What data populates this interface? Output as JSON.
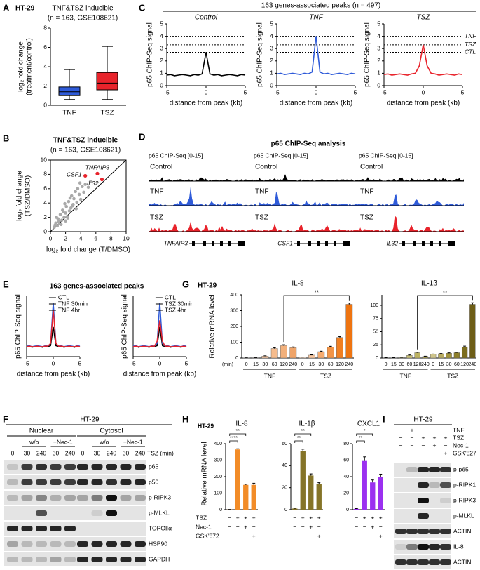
{
  "panel_labels": [
    "A",
    "B",
    "C",
    "D",
    "E",
    "F",
    "G",
    "H",
    "I"
  ],
  "chart_data": [
    {
      "type": "box",
      "cell_line": "HT-29",
      "title": "TNF&TSZ inducible",
      "subtitle": "(n = 163, GSE108621)",
      "ylabel": [
        "log₂ fold change",
        "(treatment/control)"
      ],
      "categories": [
        "TNF",
        "TSZ"
      ],
      "colors": [
        "#2f5bd9",
        "#e8232b"
      ],
      "stats": [
        {
          "min": 0.6,
          "q1": 1.0,
          "median": 1.4,
          "q3": 1.9,
          "max": 3.7
        },
        {
          "min": 0.6,
          "q1": 1.6,
          "median": 2.3,
          "q3": 3.4,
          "max": 6.1
        }
      ],
      "ylim": [
        0,
        8
      ],
      "yticks": [
        0,
        2,
        4,
        6,
        8
      ]
    },
    {
      "type": "scatter",
      "title": "TNF&TSZ inducible",
      "subtitle": "(n = 163, GSE108621)",
      "xlabel": "log₂ fold change (T/DMSO)",
      "ylabel": [
        "log₂ fold change",
        "(TSZ/DMSO)"
      ],
      "xlim": [
        0,
        10
      ],
      "ylim": [
        0,
        10
      ],
      "xticks": [
        0,
        2,
        4,
        6,
        8,
        10
      ],
      "yticks": [
        0,
        2,
        4,
        6,
        8,
        10
      ],
      "points": {
        "color": "#a9a9a9",
        "x": [
          0.5,
          0.7,
          0.9,
          1.0,
          1.2,
          1.3,
          1.5,
          1.6,
          1.8,
          2.0,
          2.1,
          2.3,
          2.4,
          2.5,
          2.7,
          2.8,
          3.0,
          3.1,
          3.3,
          3.5,
          3.6,
          3.8,
          4.0,
          4.2,
          4.4,
          4.6,
          2.2,
          1.1,
          0.8,
          1.7,
          2.9,
          3.4,
          5.0,
          5.3,
          0.6,
          1.4,
          2.6,
          3.9,
          1.9,
          2.0
        ],
        "y": [
          0.6,
          1.2,
          0.8,
          1.8,
          1.1,
          2.4,
          1.6,
          3.0,
          2.0,
          2.6,
          3.5,
          1.9,
          4.2,
          2.9,
          3.3,
          5.0,
          3.8,
          4.6,
          5.6,
          4.1,
          6.0,
          5.2,
          4.5,
          6.3,
          5.5,
          6.6,
          2.1,
          1.4,
          2.0,
          2.8,
          3.6,
          3.2,
          6.2,
          7.0,
          0.9,
          1.0,
          4.7,
          6.8,
          3.9,
          1.5
        ]
      },
      "highlights": {
        "color": "#e8232b",
        "labels": [
          "CSF1",
          "TNFAIP3",
          "IL32"
        ],
        "x": [
          4.6,
          6.2,
          6.8
        ],
        "y": [
          7.8,
          8.1,
          7.3
        ]
      }
    },
    {
      "type": "line",
      "title": "163 genes-associated peaks (n = 497)",
      "ylabel": "p65 ChIP-Seq signal",
      "xlabel": "distance from peak (kb)",
      "x": [
        -5,
        -4.5,
        -4,
        -3.5,
        -3,
        -2.5,
        -2,
        -1.5,
        -1,
        -0.5,
        0,
        0.5,
        1,
        1.5,
        2,
        2.5,
        3,
        3.5,
        4,
        4.5,
        5
      ],
      "xlim": [
        -5,
        5
      ],
      "xticks": [
        -5,
        0,
        5
      ],
      "ylim": [
        0,
        5
      ],
      "yticks": [
        0,
        1,
        2,
        3,
        4,
        5
      ],
      "panels": [
        {
          "title": "Control",
          "color": "#000000",
          "values": [
            0.85,
            0.9,
            0.8,
            0.85,
            0.9,
            0.85,
            0.8,
            0.9,
            0.85,
            0.95,
            2.7,
            0.95,
            0.85,
            0.9,
            0.8,
            0.85,
            0.9,
            0.85,
            0.8,
            0.9,
            0.85
          ]
        },
        {
          "title": "TNF",
          "color": "#2f5bd9",
          "values": [
            0.95,
            1.0,
            0.9,
            0.95,
            1.0,
            0.95,
            0.9,
            1.0,
            0.95,
            1.1,
            4.0,
            1.1,
            0.95,
            1.0,
            0.9,
            0.95,
            1.0,
            0.95,
            0.9,
            1.0,
            0.95
          ]
        },
        {
          "title": "TSZ",
          "color": "#e8232b",
          "values": [
            0.9,
            0.95,
            0.85,
            0.9,
            0.95,
            0.9,
            0.85,
            0.95,
            1.0,
            1.6,
            3.3,
            1.6,
            1.0,
            0.95,
            0.85,
            0.9,
            0.95,
            0.9,
            0.85,
            0.95,
            0.9
          ]
        }
      ],
      "reference_lines": [
        {
          "label": "TNF",
          "value": 4.0,
          "color": "#2f5bd9"
        },
        {
          "label": "TSZ",
          "value": 3.3,
          "color": "#e8232b"
        },
        {
          "label": "CTL",
          "value": 2.7,
          "color": "#000000"
        }
      ]
    },
    {
      "type": "line",
      "title": "163 genes-associated peaks",
      "ylabel": "p65 ChIP-Seq signal",
      "xlabel": "distance from peak (kb)",
      "x": [
        -5,
        -4.5,
        -4,
        -3.5,
        -3,
        -2.5,
        -2,
        -1.5,
        -1,
        -0.5,
        0,
        0.5,
        1,
        1.5,
        2,
        2.5,
        3,
        3.5,
        4,
        4.5,
        5
      ],
      "xlim": [
        -5,
        5
      ],
      "xticks": [
        -5,
        0,
        5
      ],
      "ylim": [
        0,
        5.5
      ],
      "legend": "upper right",
      "panels": [
        {
          "series": [
            {
              "name": "CTL",
              "color": "#000000",
              "values": [
                0.9,
                0.95,
                0.85,
                0.9,
                0.95,
                0.9,
                0.85,
                0.95,
                0.9,
                1.0,
                2.7,
                1.0,
                0.9,
                0.95,
                0.85,
                0.9,
                0.95,
                0.9,
                0.85,
                0.95,
                0.9
              ]
            },
            {
              "name": "TNF 30min",
              "color": "#2f5bd9",
              "values": [
                0.95,
                1.0,
                0.9,
                0.95,
                1.0,
                0.95,
                0.9,
                1.0,
                0.95,
                1.2,
                4.9,
                1.2,
                0.95,
                1.0,
                0.9,
                0.95,
                1.0,
                0.95,
                0.9,
                1.0,
                0.95
              ]
            },
            {
              "name": "TNF 4hr",
              "color": "#e8232b",
              "values": [
                0.9,
                0.95,
                0.9,
                0.9,
                0.95,
                0.9,
                0.9,
                0.95,
                0.95,
                1.2,
                4.2,
                1.2,
                0.95,
                0.95,
                0.9,
                0.9,
                0.95,
                0.9,
                0.9,
                0.95,
                0.9
              ]
            }
          ]
        },
        {
          "series": [
            {
              "name": "CTL",
              "color": "#000000",
              "values": [
                0.9,
                0.95,
                0.85,
                0.9,
                0.95,
                0.9,
                0.85,
                0.95,
                0.9,
                1.0,
                2.7,
                1.0,
                0.9,
                0.95,
                0.85,
                0.9,
                0.95,
                0.9,
                0.85,
                0.95,
                0.9
              ]
            },
            {
              "name": "TSZ 30min",
              "color": "#2f5bd9",
              "values": [
                0.95,
                1.0,
                0.9,
                0.95,
                1.0,
                0.95,
                0.9,
                1.0,
                0.95,
                1.2,
                4.9,
                1.2,
                0.95,
                1.0,
                0.9,
                0.95,
                1.0,
                0.95,
                0.9,
                1.0,
                0.95
              ]
            },
            {
              "name": "TSZ 4hr",
              "color": "#e8232b",
              "values": [
                0.9,
                0.95,
                0.9,
                0.9,
                0.95,
                0.9,
                0.9,
                0.95,
                0.95,
                1.4,
                3.3,
                1.4,
                0.95,
                0.95,
                0.9,
                0.9,
                0.95,
                0.9,
                0.9,
                0.95,
                0.9
              ]
            }
          ]
        }
      ]
    },
    {
      "type": "bar",
      "cell_line": "HT-29",
      "ylabel": "Relative mRNA level",
      "x_unit": "(min)",
      "panels": [
        {
          "title": "IL-8",
          "ylim": [
            0,
            400
          ],
          "yticks": [
            0,
            100,
            200,
            300,
            400
          ],
          "significance": "**",
          "groups": [
            {
              "name": "TNF",
              "categories": [
                "0",
                "15",
                "30",
                "60",
                "120",
                "240"
              ],
              "values": [
                1,
                2,
                12,
                60,
                78,
                65
              ],
              "errors": [
                0.5,
                1,
                2,
                5,
                6,
                5
              ],
              "colors": [
                "#fde3cf",
                "#fbd6b9",
                "#f8c9a3",
                "#f5bc8e",
                "#f2b07b",
                "#efa469"
              ]
            },
            {
              "name": "TSZ",
              "categories": [
                "0",
                "15",
                "30",
                "60",
                "120",
                "240"
              ],
              "values": [
                5,
                18,
                40,
                70,
                130,
                340
              ],
              "errors": [
                1,
                2,
                3,
                4,
                6,
                8
              ],
              "colors": [
                "#fde3cf",
                "#f9c79f",
                "#f5ab70",
                "#f29447",
                "#f07f22",
                "#ee7410"
              ]
            }
          ]
        },
        {
          "title": "IL-1β",
          "ylim": [
            0,
            120
          ],
          "yticks": [
            0,
            25,
            50,
            75,
            100
          ],
          "significance": "**",
          "groups": [
            {
              "name": "TNF",
              "categories": [
                "0",
                "15",
                "30",
                "60",
                "120",
                "240"
              ],
              "values": [
                0.5,
                0.5,
                1,
                5,
                10,
                3
              ],
              "errors": [
                0.2,
                0.2,
                0.3,
                0.8,
                1,
                0.5
              ],
              "colors": [
                "#e9e6c8",
                "#dedaad",
                "#d3cd93",
                "#c8c07a",
                "#bdb362",
                "#b3a74e"
              ]
            },
            {
              "name": "TSZ",
              "categories": [
                "0",
                "15",
                "30",
                "60",
                "120",
                "240"
              ],
              "values": [
                7,
                8,
                9,
                10,
                21,
                102
              ],
              "errors": [
                0.5,
                0.5,
                0.8,
                0.8,
                1.5,
                3
              ],
              "colors": [
                "#cfc58c",
                "#b8ab60",
                "#a2943d",
                "#8e7f2a",
                "#7c6d1e",
                "#6d5d16"
              ]
            }
          ]
        }
      ]
    },
    {
      "type": "bar",
      "cell_line": "HT-29",
      "ylabel": "Relative mRNA level",
      "conditions": [
        {
          "name": "TSZ",
          "signs": [
            "−",
            "+",
            "+",
            "+"
          ]
        },
        {
          "name": "Nec-1",
          "signs": [
            "−",
            "−",
            "+",
            "−"
          ]
        },
        {
          "name": "GSK'872",
          "signs": [
            "−",
            "−",
            "−",
            "+"
          ]
        }
      ],
      "panels": [
        {
          "title": "IL-8",
          "color": "#f28c28",
          "values": [
            1,
            365,
            150,
            150
          ],
          "errors": [
            0.5,
            4,
            4,
            10
          ],
          "ylim": [
            0,
            400
          ],
          "yticks": [
            0,
            100,
            200,
            300,
            400
          ],
          "significance": [
            "****",
            "**"
          ]
        },
        {
          "title": "IL-1β",
          "color": "#857428",
          "values": [
            1,
            53,
            31,
            23
          ],
          "errors": [
            0.3,
            2,
            1.5,
            1.5
          ],
          "ylim": [
            0,
            60
          ],
          "yticks": [
            0,
            20,
            40,
            60
          ],
          "significance": [
            "**",
            "**"
          ]
        },
        {
          "title": "CXCL1",
          "color": "#9b30f0",
          "values": [
            1,
            59,
            33,
            40
          ],
          "errors": [
            0.3,
            5,
            3,
            3
          ],
          "ylim": [
            0,
            80
          ],
          "yticks": [
            0,
            20,
            40,
            60,
            80
          ],
          "significance": [
            "**",
            "*"
          ]
        }
      ]
    }
  ],
  "genome_browser": {
    "title": "p65 ChIP-Seq analysis",
    "loci": [
      {
        "track_label": "p65 ChIP-Seq [0-15]",
        "gene": "TNFAIP3"
      },
      {
        "track_label": "p65 ChIP-Seq [0-15]",
        "gene": "CSF1"
      },
      {
        "track_label": "p65 ChIP-Seq [0-15]",
        "gene": "IL32"
      }
    ],
    "tracks": [
      {
        "name": "Control",
        "color": "#000000"
      },
      {
        "name": "TNF",
        "color": "#2f5bd9"
      },
      {
        "name": "TSZ",
        "color": "#e8232b"
      }
    ]
  },
  "blot_F": {
    "cell_line": "HT-29",
    "fractions": [
      {
        "name": "Nuclear",
        "groups": [
          "w/o",
          "+Nec-1"
        ]
      },
      {
        "name": "Cytosol",
        "groups": [
          "w/o",
          "+Nec-1"
        ]
      }
    ],
    "time_label": "TSZ (min)",
    "lanes": [
      "0",
      "30",
      "240",
      "30",
      "240"
    ],
    "bands": [
      "p65",
      "p50",
      "p-RIPK3",
      "p-MLKL",
      "TOPOⅡα",
      "HSP90",
      "GAPDH"
    ]
  },
  "blot_I": {
    "cell_line": "HT-29",
    "conditions": [
      {
        "name": "TNF",
        "signs": [
          "−",
          "+",
          "−",
          "−",
          "−"
        ]
      },
      {
        "name": "TSZ",
        "signs": [
          "−",
          "−",
          "+",
          "+",
          "+"
        ]
      },
      {
        "name": "Nec-1",
        "signs": [
          "−",
          "−",
          "−",
          "+",
          "−"
        ]
      },
      {
        "name": "GSK'827",
        "signs": [
          "−",
          "−",
          "−",
          "−",
          "+"
        ]
      }
    ],
    "bands": [
      "p-p65",
      "p-RIPK1",
      "p-RIPK3",
      "p-MLKL",
      "ACTIN",
      "IL-8",
      "ACTIN"
    ]
  }
}
